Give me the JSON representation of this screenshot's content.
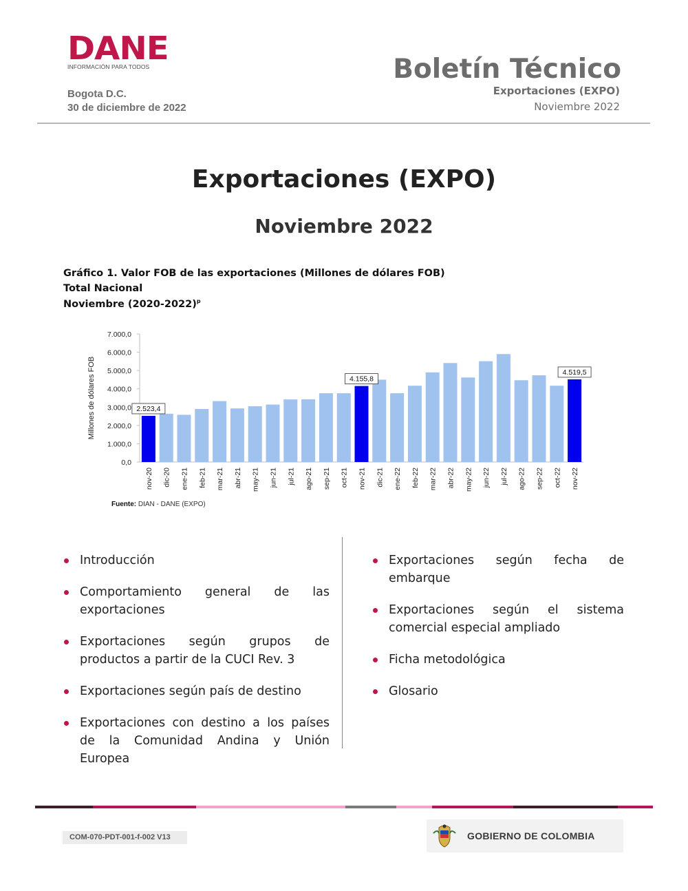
{
  "header": {
    "logo_word": "DANE",
    "logo_tagline": "INFORMACIÓN PARA TODOS",
    "city": "Bogota D.C.",
    "date": "30 de diciembre de 2022",
    "bulletin_title": "Boletín Técnico",
    "bulletin_subtitle": "Exportaciones (EXPO)",
    "bulletin_period": "Noviembre 2022"
  },
  "main": {
    "title": "Exportaciones (EXPO)",
    "period": "Noviembre 2022"
  },
  "figure": {
    "caption_line1": "Gráfico 1. Valor FOB de las exportaciones (Millones de dólares FOB)",
    "caption_line2": "Total Nacional",
    "caption_line3": "Noviembre (2020-2022)",
    "caption_sup": "p",
    "source_label": "Fuente:",
    "source_text": " DIAN  - DANE (EXPO)"
  },
  "chart_data": {
    "type": "bar",
    "ylabel": "Millones de dólares FOB",
    "ylim": [
      0,
      7000
    ],
    "yticks": [
      "0,0",
      "1.000,0",
      "2.000,0",
      "3.000,0",
      "4.000,0",
      "5.000,0",
      "6.000,0",
      "7.000,0"
    ],
    "categories": [
      "nov-20",
      "dic-20",
      "ene-21",
      "feb-21",
      "mar-21",
      "abr-21",
      "may-21",
      "jun-21",
      "jul-21",
      "ago-21",
      "sep-21",
      "oct-21",
      "nov-21",
      "dic-21",
      "ene-22",
      "feb-22",
      "mar-22",
      "abr-22",
      "may-22",
      "jun-22",
      "jul-22",
      "ago-22",
      "sep-22",
      "oct-22",
      "nov-22"
    ],
    "values": [
      2523.4,
      2640,
      2580,
      2900,
      3330,
      2930,
      3050,
      3140,
      3420,
      3430,
      3760,
      3760,
      4155.8,
      4500,
      3760,
      4170,
      4900,
      5410,
      4620,
      5510,
      5900,
      4470,
      4740,
      4170,
      4519.5
    ],
    "highlight_indices": [
      0,
      12,
      24
    ],
    "data_labels": [
      {
        "index": 0,
        "text": "2.523,4"
      },
      {
        "index": 12,
        "text": "4.155,8"
      },
      {
        "index": 24,
        "text": "4.519,5"
      }
    ],
    "colors": {
      "normal": "#a0c2ef",
      "highlight": "#0000ee"
    },
    "grid": false
  },
  "contents": {
    "left": [
      "Introducción",
      "Comportamiento general de las exportaciones",
      "Exportaciones según grupos de productos a partir de la CUCI Rev. 3",
      "Exportaciones según país de destino",
      "Exportaciones con destino a los países de la Comunidad Andina y Unión Europea"
    ],
    "right": [
      "Exportaciones según fecha de embarque",
      "Exportaciones según el sistema comercial especial ampliado",
      "Ficha metodológica",
      "Glosario"
    ]
  },
  "footer": {
    "form_code": "COM-070-PDT-001-f-002 V13",
    "gov_label": "GOBIERNO DE COLOMBIA",
    "bar_colors": [
      "#3b1f2b",
      "#b0185a",
      "#f1a3cc",
      "#7a7a7a",
      "#f1a3cc",
      "#b0185a",
      "#3b1f2b",
      "#b0185a"
    ]
  },
  "colors": {
    "brand": "#c0174a"
  }
}
